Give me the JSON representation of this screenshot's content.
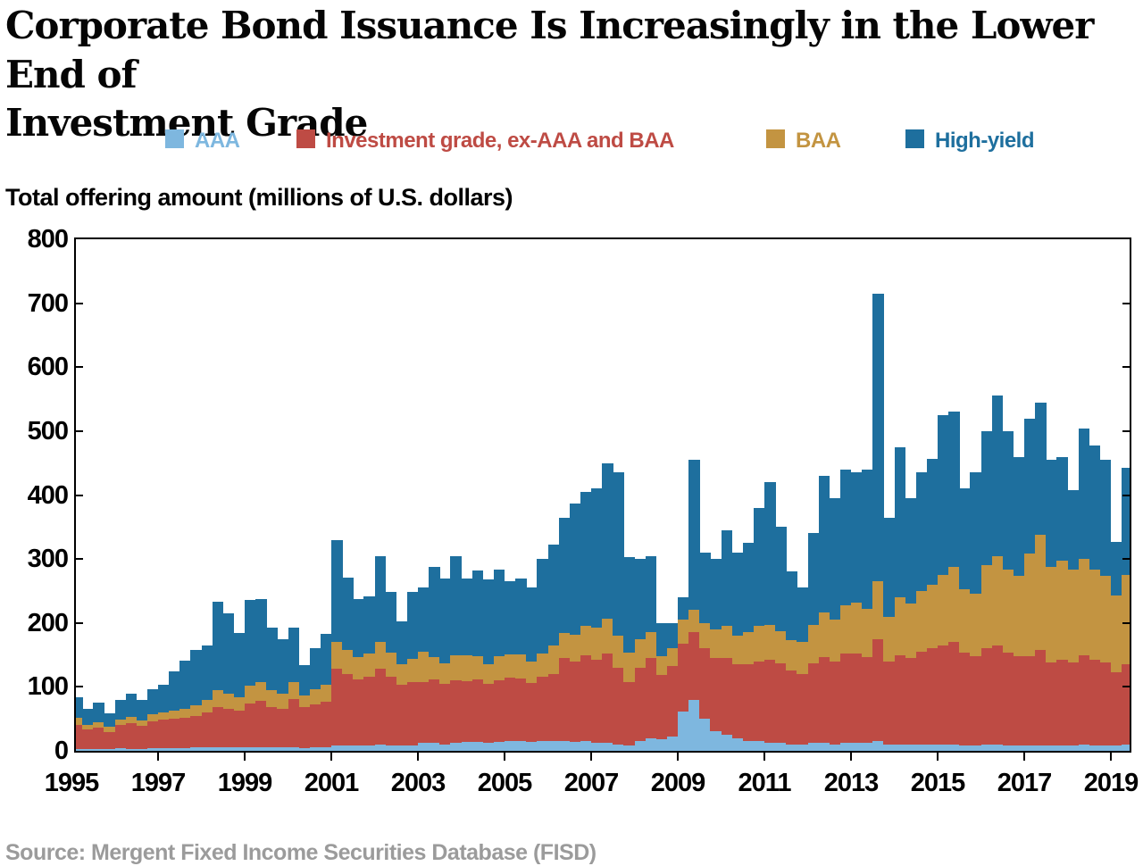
{
  "title_line1": "Corporate Bond Issuance Is Increasingly in the Lower End of",
  "title_line2": "Investment Grade",
  "axis_header": "Total offering amount (millions of U.S. dollars)",
  "source_note": "Source: Mergent Fixed Income Securities Database (FISD)",
  "legend": {
    "items": [
      {
        "label": "AAA",
        "color": "#7EB7DF"
      },
      {
        "label": "Investment grade, ex-AAA and BAA",
        "color": "#BE4B44"
      },
      {
        "label": "BAA",
        "color": "#C39441"
      },
      {
        "label": "High-yield",
        "color": "#1E6F9E"
      }
    ]
  },
  "chart_data": {
    "type": "bar",
    "stacked": true,
    "title": "Corporate Bond Issuance Is Increasingly in the Lower End of Investment Grade",
    "ylabel": "Total offering amount (millions of U.S. dollars)",
    "xlabel": "",
    "ylim": [
      0,
      800
    ],
    "yticks": [
      0,
      100,
      200,
      300,
      400,
      500,
      600,
      700,
      800
    ],
    "xtick_years": [
      1995,
      1997,
      1999,
      2001,
      2003,
      2005,
      2007,
      2009,
      2011,
      2013,
      2015,
      2017,
      2019
    ],
    "grid": false,
    "legend_position": "top",
    "frequency": "quarterly",
    "x": [
      "1995Q1",
      "1995Q2",
      "1995Q3",
      "1995Q4",
      "1996Q1",
      "1996Q2",
      "1996Q3",
      "1996Q4",
      "1997Q1",
      "1997Q2",
      "1997Q3",
      "1997Q4",
      "1998Q1",
      "1998Q2",
      "1998Q3",
      "1998Q4",
      "1999Q1",
      "1999Q2",
      "1999Q3",
      "1999Q4",
      "2000Q1",
      "2000Q2",
      "2000Q3",
      "2000Q4",
      "2001Q1",
      "2001Q2",
      "2001Q3",
      "2001Q4",
      "2002Q1",
      "2002Q2",
      "2002Q3",
      "2002Q4",
      "2003Q1",
      "2003Q2",
      "2003Q3",
      "2003Q4",
      "2004Q1",
      "2004Q2",
      "2004Q3",
      "2004Q4",
      "2005Q1",
      "2005Q2",
      "2005Q3",
      "2005Q4",
      "2006Q1",
      "2006Q2",
      "2006Q3",
      "2006Q4",
      "2007Q1",
      "2007Q2",
      "2007Q3",
      "2007Q4",
      "2008Q1",
      "2008Q2",
      "2008Q3",
      "2008Q4",
      "2009Q1",
      "2009Q2",
      "2009Q3",
      "2009Q4",
      "2010Q1",
      "2010Q2",
      "2010Q3",
      "2010Q4",
      "2011Q1",
      "2011Q2",
      "2011Q3",
      "2011Q4",
      "2012Q1",
      "2012Q2",
      "2012Q3",
      "2012Q4",
      "2013Q1",
      "2013Q2",
      "2013Q3",
      "2013Q4",
      "2014Q1",
      "2014Q2",
      "2014Q3",
      "2014Q4",
      "2015Q1",
      "2015Q2",
      "2015Q3",
      "2015Q4",
      "2016Q1",
      "2016Q2",
      "2016Q3",
      "2016Q4",
      "2017Q1",
      "2017Q2",
      "2017Q3",
      "2017Q4",
      "2018Q1",
      "2018Q2",
      "2018Q3",
      "2018Q4",
      "2019Q1",
      "2019Q2",
      "2019Q3"
    ],
    "series": [
      {
        "name": "AAA",
        "color": "#7EB7DF",
        "values": [
          3,
          3,
          3,
          3,
          4,
          3,
          3,
          4,
          4,
          4,
          4,
          5,
          5,
          5,
          5,
          5,
          6,
          6,
          5,
          5,
          5,
          4,
          5,
          5,
          8,
          8,
          8,
          8,
          10,
          8,
          8,
          8,
          12,
          12,
          10,
          12,
          14,
          14,
          12,
          14,
          15,
          15,
          14,
          16,
          15,
          15,
          14,
          15,
          12,
          12,
          10,
          8,
          15,
          20,
          18,
          22,
          62,
          80,
          50,
          30,
          25,
          20,
          15,
          15,
          12,
          12,
          10,
          10,
          12,
          12,
          10,
          12,
          12,
          12,
          15,
          10,
          10,
          10,
          10,
          10,
          10,
          10,
          8,
          8,
          10,
          10,
          8,
          8,
          8,
          8,
          8,
          8,
          8,
          10,
          8,
          8,
          8,
          10,
          10
        ]
      },
      {
        "name": "Investment grade, ex-AAA and BAA",
        "color": "#BE4B44",
        "values": [
          38,
          30,
          33,
          27,
          36,
          40,
          36,
          42,
          45,
          46,
          48,
          50,
          55,
          64,
          60,
          58,
          68,
          72,
          64,
          60,
          76,
          64,
          68,
          72,
          120,
          112,
          104,
          108,
          118,
          108,
          96,
          100,
          95,
          100,
          95,
          98,
          95,
          98,
          92,
          96,
          100,
          98,
          92,
          100,
          105,
          130,
          125,
          135,
          130,
          140,
          120,
          100,
          115,
          125,
          100,
          110,
          105,
          105,
          110,
          115,
          120,
          115,
          120,
          125,
          130,
          125,
          115,
          110,
          125,
          135,
          130,
          140,
          140,
          135,
          160,
          130,
          140,
          135,
          145,
          150,
          155,
          160,
          145,
          140,
          150,
          155,
          145,
          140,
          140,
          150,
          130,
          135,
          130,
          140,
          135,
          130,
          115,
          125,
          120
        ]
      },
      {
        "name": "BAA",
        "color": "#C39441",
        "values": [
          10,
          8,
          9,
          8,
          9,
          10,
          9,
          11,
          11,
          13,
          14,
          16,
          20,
          26,
          24,
          21,
          28,
          30,
          26,
          24,
          26,
          19,
          23,
          26,
          42,
          38,
          34,
          36,
          42,
          38,
          32,
          36,
          48,
          34,
          32,
          40,
          40,
          36,
          32,
          38,
          36,
          38,
          34,
          36,
          45,
          40,
          42,
          45,
          50,
          55,
          50,
          45,
          45,
          40,
          30,
          28,
          38,
          35,
          40,
          45,
          50,
          45,
          50,
          55,
          55,
          50,
          48,
          50,
          60,
          70,
          65,
          75,
          80,
          75,
          90,
          70,
          90,
          85,
          95,
          100,
          110,
          118,
          100,
          98,
          130,
          140,
          130,
          125,
          160,
          180,
          150,
          155,
          145,
          150,
          140,
          135,
          120,
          140,
          135
        ]
      },
      {
        "name": "High-yield",
        "color": "#1E6F9E",
        "values": [
          33,
          24,
          31,
          21,
          31,
          36,
          31,
          39,
          44,
          61,
          75,
          87,
          85,
          138,
          126,
          100,
          134,
          130,
          98,
          86,
          86,
          47,
          64,
          80,
          160,
          113,
          92,
          89,
          135,
          94,
          67,
          104,
          100,
          141,
          133,
          155,
          121,
          134,
          132,
          136,
          114,
          119,
          115,
          148,
          157,
          180,
          206,
          210,
          218,
          243,
          255,
          150,
          125,
          120,
          52,
          40,
          35,
          235,
          110,
          110,
          150,
          130,
          140,
          185,
          223,
          163,
          107,
          85,
          143,
          213,
          190,
          213,
          203,
          218,
          450,
          155,
          235,
          165,
          185,
          196,
          250,
          242,
          157,
          189,
          210,
          250,
          217,
          187,
          212,
          206,
          167,
          162,
          125,
          204,
          195,
          182,
          84,
          168,
          163
        ]
      }
    ]
  }
}
